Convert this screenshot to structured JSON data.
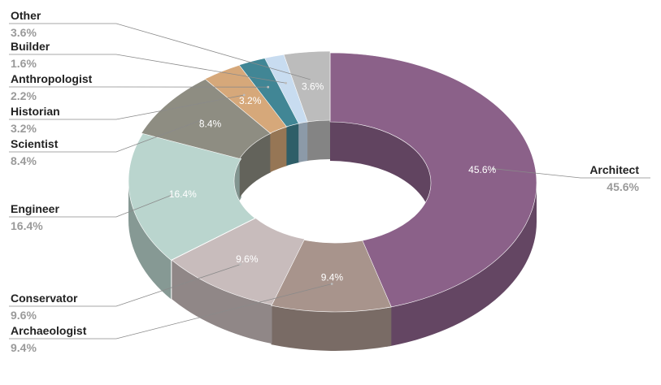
{
  "chart_data": {
    "type": "pie",
    "variant": "3d-donut",
    "categories": [
      "Architect",
      "Archaeologist",
      "Conservator",
      "Engineer",
      "Scientist",
      "Historian",
      "Anthropologist",
      "Builder",
      "Other"
    ],
    "values": [
      45.6,
      9.4,
      9.6,
      16.4,
      8.4,
      3.2,
      2.2,
      1.6,
      3.6
    ],
    "colors": [
      "#8b6189",
      "#a8948c",
      "#c8bcbc",
      "#bad5ce",
      "#8e8d82",
      "#d6a87a",
      "#418695",
      "#c8dcf0",
      "#bcbcbc"
    ],
    "slice_labels": [
      "45.6%",
      "9.4%",
      "9.6%",
      "16.4%",
      "8.4%",
      "3.2%",
      "",
      "",
      "3.6%"
    ],
    "pct_labels": [
      "45.6%",
      "9.4%",
      "9.6%",
      "16.4%",
      "8.4%",
      "3.2%",
      "2.2%",
      "1.6%",
      "3.6%"
    ],
    "legend": "callouts"
  }
}
